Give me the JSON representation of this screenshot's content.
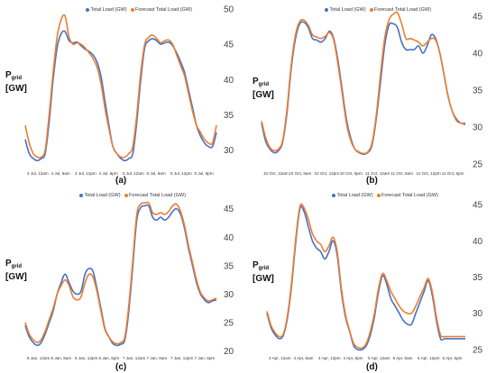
{
  "chart_data": [
    {
      "id": "a",
      "type": "line",
      "panel_label": "(a)",
      "ylabel_main": "P",
      "ylabel_sub": "grid",
      "ylabel_unit": "[GW]",
      "ylim": [
        27,
        50
      ],
      "yticks": [
        30,
        35,
        40,
        45,
        50
      ],
      "xticks": [
        "4 Jul, 12am",
        "4 Jul, 6am",
        "4 Jul, 12pm",
        "4 Jul, 6pm",
        "5 Jul, 12am",
        "5 Jul, 6am",
        "5 Jul, 12pm",
        "5 Jul, 6pm"
      ],
      "x_start": 0,
      "x_end": 48,
      "series": [
        {
          "name": "Total Load (GW)",
          "color": "#4472C4",
          "x": [
            0,
            1,
            2,
            3,
            4,
            5,
            6,
            7,
            8,
            9,
            10,
            11,
            12,
            13,
            14,
            15,
            16,
            17,
            18,
            19,
            20,
            21,
            22,
            23,
            24,
            25,
            26,
            27,
            28,
            29,
            30,
            31,
            32,
            33,
            34,
            35,
            36,
            37,
            38,
            39,
            40,
            41,
            42,
            43,
            44,
            45,
            46,
            47,
            48
          ],
          "values": [
            31.5,
            29.5,
            28.8,
            28.5,
            28.8,
            29.5,
            34,
            40,
            44.5,
            46.5,
            46.8,
            45.5,
            45.2,
            45.3,
            44.8,
            44.3,
            44,
            43.5,
            42.5,
            40.5,
            37,
            33.5,
            30.5,
            29.5,
            28.8,
            28.5,
            28.8,
            29.5,
            34,
            40,
            44.5,
            45.5,
            45.8,
            45.5,
            45,
            45.2,
            45.3,
            44.8,
            43.8,
            42.5,
            41,
            38.5,
            36,
            33.5,
            32,
            31,
            30.5,
            30.5,
            32.5
          ]
        },
        {
          "name": "Forecast Total Load (GW)",
          "color": "#ED7D31",
          "x": [
            0,
            1,
            2,
            3,
            4,
            5,
            6,
            7,
            8,
            9,
            10,
            11,
            12,
            13,
            14,
            15,
            16,
            17,
            18,
            19,
            20,
            21,
            22,
            23,
            24,
            25,
            26,
            27,
            28,
            29,
            30,
            31,
            32,
            33,
            34,
            35,
            36,
            37,
            38,
            39,
            40,
            41,
            42,
            43,
            44,
            45,
            46,
            47,
            48
          ],
          "values": [
            33.5,
            31,
            29.5,
            29,
            29,
            30,
            35,
            41,
            46,
            48.5,
            49,
            46,
            45,
            45.2,
            45,
            44.5,
            43.8,
            43,
            41.8,
            39.5,
            36,
            33,
            30.5,
            29.5,
            29,
            29,
            29.5,
            30.5,
            35,
            41,
            45,
            46,
            46.3,
            45.8,
            45.2,
            45.5,
            45.6,
            45,
            43.5,
            42,
            40.5,
            38,
            35.5,
            33.5,
            32.5,
            31.5,
            31,
            31,
            33.5
          ]
        }
      ],
      "legend": [
        "Total Load (GW)",
        "Forecast Total Load (GW)"
      ]
    },
    {
      "id": "b",
      "type": "line",
      "panel_label": "(b)",
      "ylabel_main": "P",
      "ylabel_sub": "grid",
      "ylabel_unit": "[GW]",
      "ylim": [
        24,
        46
      ],
      "yticks": [
        25,
        30,
        35,
        40,
        45
      ],
      "xticks": [
        "10 Oct, 12am",
        "10 Oct, 6am",
        "10 Oct, 12pm",
        "10 Oct, 6pm",
        "11 Oct, 12am",
        "11 Oct, 6am",
        "11 Oct, 12pm",
        "11 Oct, 6pm"
      ],
      "x_start": 0,
      "x_end": 48,
      "series": [
        {
          "name": "Total Load (GW)",
          "color": "#4472C4",
          "x": [
            0,
            1,
            2,
            3,
            4,
            5,
            6,
            7,
            8,
            9,
            10,
            11,
            12,
            13,
            14,
            15,
            16,
            17,
            18,
            19,
            20,
            21,
            22,
            23,
            24,
            25,
            26,
            27,
            28,
            29,
            30,
            31,
            32,
            33,
            34,
            35,
            36,
            37,
            38,
            39,
            40,
            41,
            42,
            43,
            44,
            45,
            46,
            47,
            48
          ],
          "values": [
            30.5,
            28,
            27,
            26.5,
            26.8,
            28,
            32,
            38,
            42,
            44,
            44.2,
            43.5,
            42,
            41.8,
            41.5,
            42,
            43,
            42,
            39,
            35,
            31,
            28.5,
            27,
            26.5,
            26.3,
            26.5,
            27.5,
            31,
            36,
            41,
            43.8,
            44,
            43.5,
            41.5,
            40.5,
            40.5,
            40.5,
            41,
            40,
            41,
            42.5,
            42,
            40,
            37,
            34,
            32,
            31,
            30.5,
            30.5
          ]
        },
        {
          "name": "Forecast Total Load (GW)",
          "color": "#ED7D31",
          "x": [
            0,
            1,
            2,
            3,
            4,
            5,
            6,
            7,
            8,
            9,
            10,
            11,
            12,
            13,
            14,
            15,
            16,
            17,
            18,
            19,
            20,
            21,
            22,
            23,
            24,
            25,
            26,
            27,
            28,
            29,
            30,
            31,
            32,
            33,
            34,
            35,
            36,
            37,
            38,
            39,
            40,
            41,
            42,
            43,
            44,
            45,
            46,
            47,
            48
          ],
          "values": [
            30.8,
            28.5,
            27.2,
            26.8,
            27,
            28.2,
            32.5,
            38.5,
            42.5,
            44.3,
            44.5,
            43.8,
            42.5,
            42.2,
            42,
            42.3,
            42.8,
            41.8,
            38.5,
            34.5,
            30.5,
            28.2,
            27,
            26.6,
            26.4,
            26.6,
            27.8,
            31.5,
            37,
            42,
            44.5,
            45.3,
            45.5,
            44,
            42,
            42,
            41.8,
            41.5,
            41,
            41.5,
            42,
            41.8,
            40,
            37,
            34,
            32,
            30.8,
            30.5,
            30.3
          ]
        }
      ],
      "legend": [
        "Total Load (GW)",
        "Forecast Total Load (GW)"
      ]
    },
    {
      "id": "c",
      "type": "line",
      "panel_label": "(c)",
      "ylabel_main": "P",
      "ylabel_sub": "grid",
      "ylabel_unit": "[GW]",
      "ylim": [
        19,
        47
      ],
      "yticks": [
        20,
        25,
        30,
        35,
        40,
        45
      ],
      "xticks": [
        "6 Jan, 12am",
        "6 Jan, 6am",
        "6 Jan, 12pm",
        "6 Jan, 6pm",
        "7 Jan, 12am",
        "7 Jan, 6am",
        "7 Jan, 12pm",
        "7 Jan, 6pm"
      ],
      "x_start": 0,
      "x_end": 48,
      "series": [
        {
          "name": "Total Load (GW)",
          "color": "#4472C4",
          "x": [
            0,
            1,
            2,
            3,
            4,
            5,
            6,
            7,
            8,
            9,
            10,
            11,
            12,
            13,
            14,
            15,
            16,
            17,
            18,
            19,
            20,
            21,
            22,
            23,
            24,
            25,
            26,
            27,
            28,
            29,
            30,
            31,
            32,
            33,
            34,
            35,
            36,
            37,
            38,
            39,
            40,
            41,
            42,
            43,
            44,
            45,
            46,
            47,
            48
          ],
          "values": [
            24.5,
            22.5,
            21.5,
            21,
            21.5,
            23,
            25,
            27,
            30,
            32,
            33.5,
            32,
            30.5,
            30,
            30.5,
            33.5,
            34.5,
            34,
            31,
            27.5,
            24,
            22.5,
            21.3,
            21,
            21.2,
            22,
            27,
            35,
            43,
            45.2,
            45.5,
            45.5,
            43.5,
            43,
            43.5,
            43,
            43.5,
            44.5,
            45,
            44,
            41.5,
            38,
            35,
            32,
            30,
            29,
            28.5,
            28.8,
            29
          ]
        },
        {
          "name": "Forecast Total Load (GW)",
          "color": "#ED7D31",
          "x": [
            0,
            1,
            2,
            3,
            4,
            5,
            6,
            7,
            8,
            9,
            10,
            11,
            12,
            13,
            14,
            15,
            16,
            17,
            18,
            19,
            20,
            21,
            22,
            23,
            24,
            25,
            26,
            27,
            28,
            29,
            30,
            31,
            32,
            33,
            34,
            35,
            36,
            37,
            38,
            39,
            40,
            41,
            42,
            43,
            44,
            45,
            46,
            47,
            48
          ],
          "values": [
            25,
            23,
            22,
            21.5,
            22,
            23.5,
            25.5,
            27.5,
            30,
            31.5,
            32.5,
            31.5,
            29.5,
            29,
            29.5,
            32,
            33.5,
            33,
            30.5,
            27,
            23.8,
            22.5,
            21.6,
            21.3,
            21.5,
            22.5,
            28,
            36,
            44,
            45.8,
            46,
            46,
            44.3,
            44,
            44.3,
            44,
            44.5,
            45.5,
            45.8,
            44.5,
            42,
            38.5,
            35.5,
            32.5,
            30.3,
            29.3,
            28.8,
            29,
            29.3
          ]
        }
      ],
      "legend": [
        "Total Load (GW)",
        "Forecast Total Load (GW)"
      ]
    },
    {
      "id": "d",
      "type": "line",
      "panel_label": "(d)",
      "ylabel_main": "P",
      "ylabel_sub": "grid",
      "ylabel_unit": "[GW]",
      "ylim": [
        24,
        46
      ],
      "yticks": [
        25,
        30,
        35,
        40,
        45
      ],
      "xticks": [
        "4 Apr, 12am",
        "4 Apr, 6am",
        "4 Apr, 12pm",
        "4 Apr, 6pm",
        "5 Apr, 12am",
        "5 Apr, 6am",
        "5 Apr, 12pm",
        "5 Apr, 6pm"
      ],
      "x_start": 0,
      "x_end": 48,
      "series": [
        {
          "name": "Total Load (GW)",
          "color": "#4472C4",
          "x": [
            0,
            1,
            2,
            3,
            4,
            5,
            6,
            7,
            8,
            9,
            10,
            11,
            12,
            13,
            14,
            15,
            16,
            17,
            18,
            19,
            20,
            21,
            22,
            23,
            24,
            25,
            26,
            27,
            28,
            29,
            30,
            31,
            32,
            33,
            34,
            35,
            36,
            37,
            38,
            39,
            40,
            41,
            42,
            43,
            44,
            45,
            46,
            47,
            48
          ],
          "values": [
            30,
            28,
            27,
            26.5,
            27,
            29.5,
            34,
            40,
            44.5,
            44,
            42,
            40,
            39,
            38.5,
            37.5,
            38.5,
            40,
            38,
            33,
            29.5,
            27.5,
            25.5,
            25,
            25,
            25.5,
            27,
            29.5,
            33,
            35.2,
            34,
            32,
            31,
            30,
            29,
            28.5,
            28.5,
            30,
            31.5,
            33,
            34.5,
            32.5,
            29,
            26.5,
            26.5,
            26.5,
            26.5,
            26.5,
            26.5,
            26.5
          ]
        },
        {
          "name": "Forecast Total Load (GW)",
          "color": "#ED7D31",
          "x": [
            0,
            1,
            2,
            3,
            4,
            5,
            6,
            7,
            8,
            9,
            10,
            11,
            12,
            13,
            14,
            15,
            16,
            17,
            18,
            19,
            20,
            21,
            22,
            23,
            24,
            25,
            26,
            27,
            28,
            29,
            30,
            31,
            32,
            33,
            34,
            35,
            36,
            37,
            38,
            39,
            40,
            41,
            42,
            43,
            44,
            45,
            46,
            47,
            48
          ],
          "values": [
            30.3,
            28.3,
            27.3,
            26.8,
            27.2,
            29.8,
            34.5,
            40.5,
            44.8,
            44.5,
            43,
            41,
            40,
            39.5,
            38.5,
            39.3,
            40.5,
            38.5,
            33.5,
            29.8,
            27.6,
            25.8,
            25.3,
            25.2,
            25.8,
            27.5,
            30,
            33.5,
            35.5,
            34.5,
            33,
            32,
            31,
            30.3,
            30,
            30,
            31,
            32.3,
            33.5,
            34.8,
            33,
            29.5,
            27,
            26.8,
            26.8,
            26.8,
            26.8,
            26.8,
            26.8
          ]
        }
      ],
      "legend": [
        "Total Load (GW)",
        "Forecast Total Load (GW)"
      ]
    }
  ]
}
